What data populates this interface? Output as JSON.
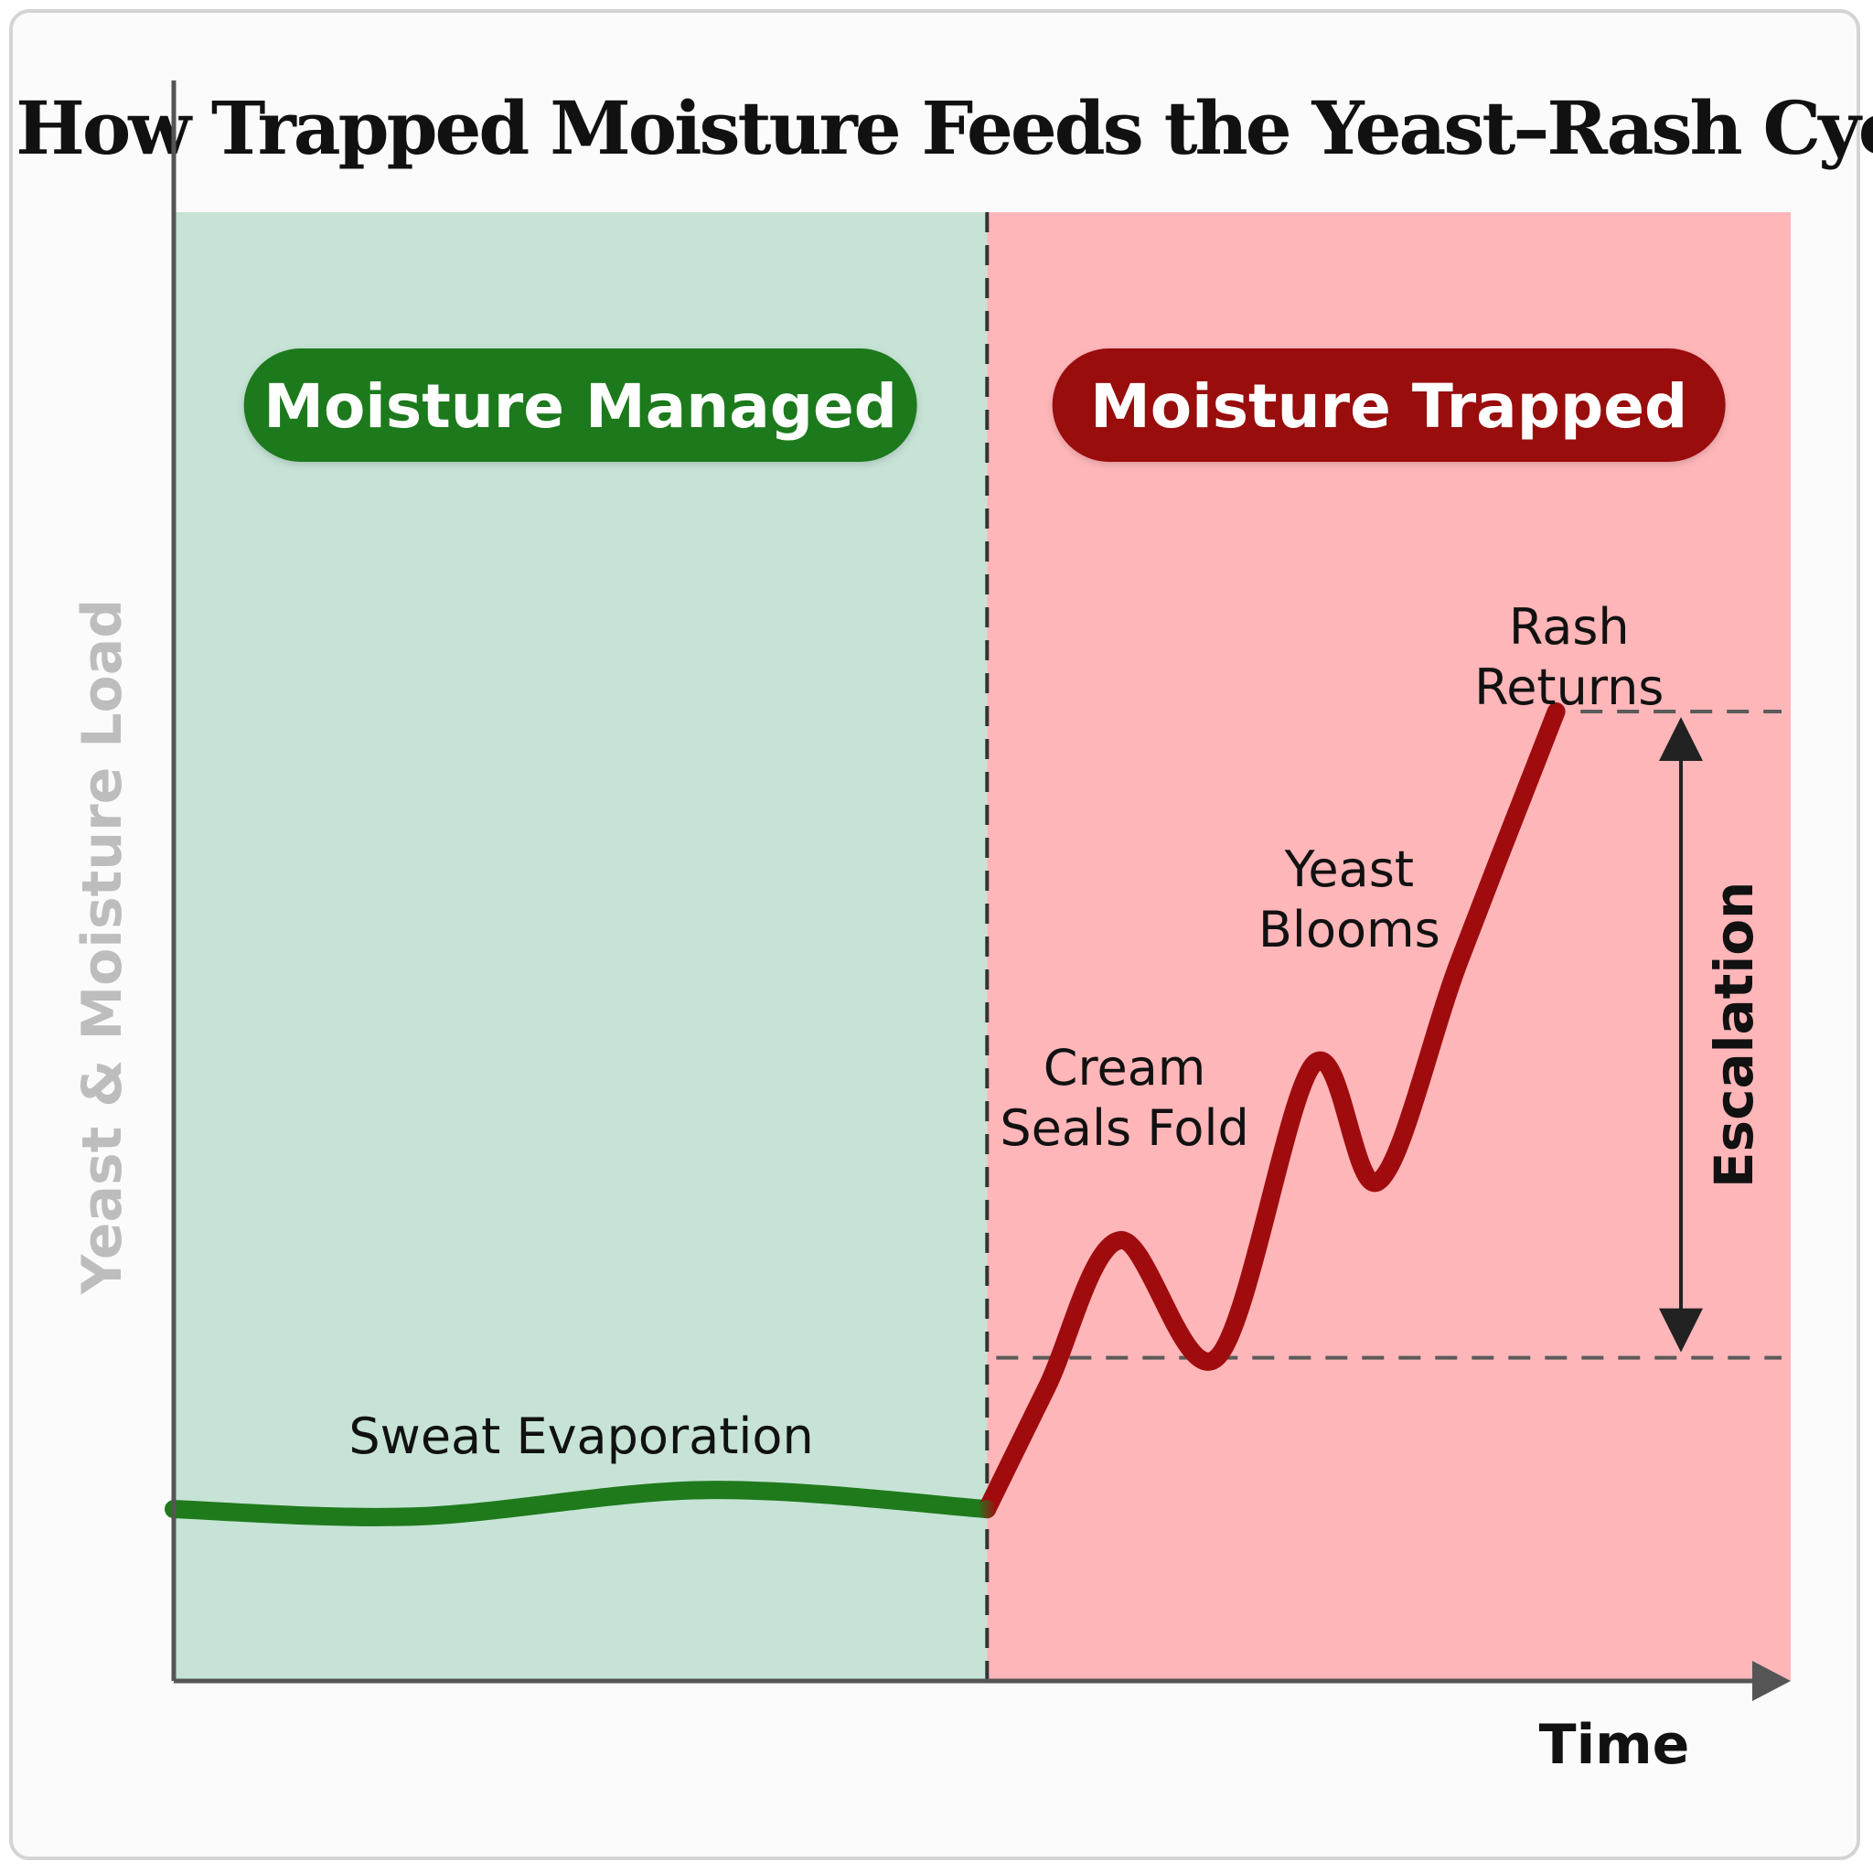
{
  "title": "How Trapped Moisture Feeds the Yeast–Rash Cycle",
  "colors": {
    "managed_zone": "#c6e3d6",
    "trapped_zone": "#ffb6b9",
    "managed_pill": "#1f7a1c",
    "trapped_pill": "#990a0c",
    "managed_line": "#1f7a1c",
    "trapped_line": "#a00c0e",
    "axis": "#555555",
    "ylabel": "#bdbdbd"
  },
  "chart_data": {
    "type": "line",
    "title": "How Trapped Moisture Feeds the Yeast–Rash Cycle",
    "xlabel": "Time",
    "ylabel": "Yeast & Moisture Load",
    "xlim": [
      0,
      10
    ],
    "ylim": [
      0,
      10
    ],
    "grid": false,
    "zones": [
      {
        "label": "Moisture Managed",
        "x_start": 0,
        "x_end": 5.03
      },
      {
        "label": "Moisture Trapped",
        "x_start": 5.03,
        "x_end": 10
      }
    ],
    "series": [
      {
        "name": "Moisture Managed",
        "x": [
          0,
          1.5,
          3.3,
          5.03
        ],
        "y": [
          1.17,
          1.12,
          1.3,
          1.17
        ]
      },
      {
        "name": "Moisture Trapped",
        "x": [
          5.03,
          5.4,
          5.85,
          6.45,
          7.05,
          7.45,
          8.0,
          8.5,
          9.0
        ],
        "y": [
          1.17,
          2.0,
          3.0,
          2.2,
          4.2,
          3.4,
          4.9,
          6.6,
          5.0
        ],
        "smooth_points": [
          [
            5.03,
            1.17
          ],
          [
            5.4,
            2.0
          ],
          [
            5.85,
            3.0
          ],
          [
            6.45,
            2.2
          ],
          [
            7.05,
            4.2
          ],
          [
            7.45,
            3.4
          ],
          [
            7.95,
            4.9
          ],
          [
            8.55,
            6.6
          ]
        ]
      }
    ],
    "annotations": [
      {
        "text": "Sweat Evaporation",
        "x": 2.52,
        "y": 1.55
      },
      {
        "text": "Cream\nSeals Fold",
        "x": 5.88,
        "y": 3.65
      },
      {
        "text": "Yeast\nBlooms",
        "x": 7.27,
        "y": 5.0
      },
      {
        "text": "Rash\nReturns",
        "x": 8.63,
        "y": 6.65
      }
    ],
    "escalation": {
      "label": "Escalation",
      "y_low": 2.2,
      "y_high": 6.6
    }
  }
}
